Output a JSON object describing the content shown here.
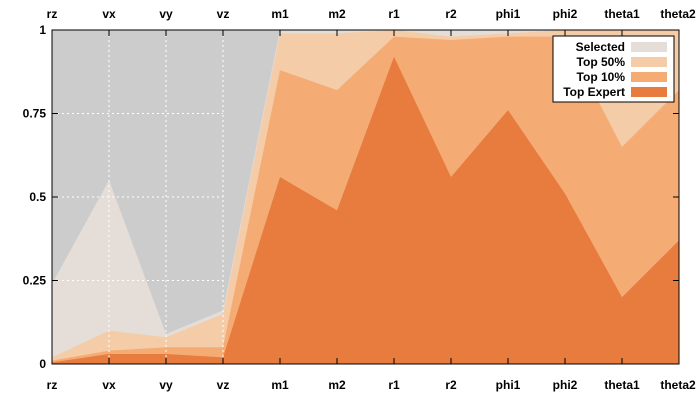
{
  "chart_data": {
    "type": "area",
    "title": "",
    "xlabel": "",
    "ylabel": "",
    "categories": [
      "rz",
      "vx",
      "vy",
      "vz",
      "m1",
      "m2",
      "r1",
      "r2",
      "phi1",
      "phi2",
      "theta1",
      "theta2"
    ],
    "ylim": [
      0,
      1
    ],
    "yticks": [
      0,
      0.25,
      0.5,
      0.75,
      1
    ],
    "ytick_labels": [
      "0",
      "0.25",
      "0.5",
      "0.75",
      "1"
    ],
    "grid": "vertical dashed lines on first four categories",
    "legend_placement": "top-right",
    "background_color": "#cccccc",
    "series": [
      {
        "name": "Selected",
        "color": "#e5ddd7",
        "values": [
          0.24,
          0.55,
          0.09,
          0.16,
          1.0,
          1.0,
          1.0,
          1.0,
          1.0,
          1.0,
          1.0,
          1.0
        ]
      },
      {
        "name": "Top 50%",
        "color": "#f4cda8",
        "values": [
          0.02,
          0.1,
          0.08,
          0.15,
          0.99,
          0.99,
          1.0,
          0.98,
          0.99,
          1.0,
          1.0,
          1.0
        ]
      },
      {
        "name": "Top 10%",
        "color": "#f5ac74",
        "values": [
          0.01,
          0.04,
          0.05,
          0.05,
          0.88,
          0.82,
          0.98,
          0.97,
          0.98,
          0.98,
          0.65,
          0.82
        ]
      },
      {
        "name": "Top Expert",
        "color": "#e87b3e",
        "values": [
          0.005,
          0.03,
          0.03,
          0.02,
          0.56,
          0.46,
          0.92,
          0.56,
          0.76,
          0.51,
          0.2,
          0.37
        ]
      }
    ]
  }
}
